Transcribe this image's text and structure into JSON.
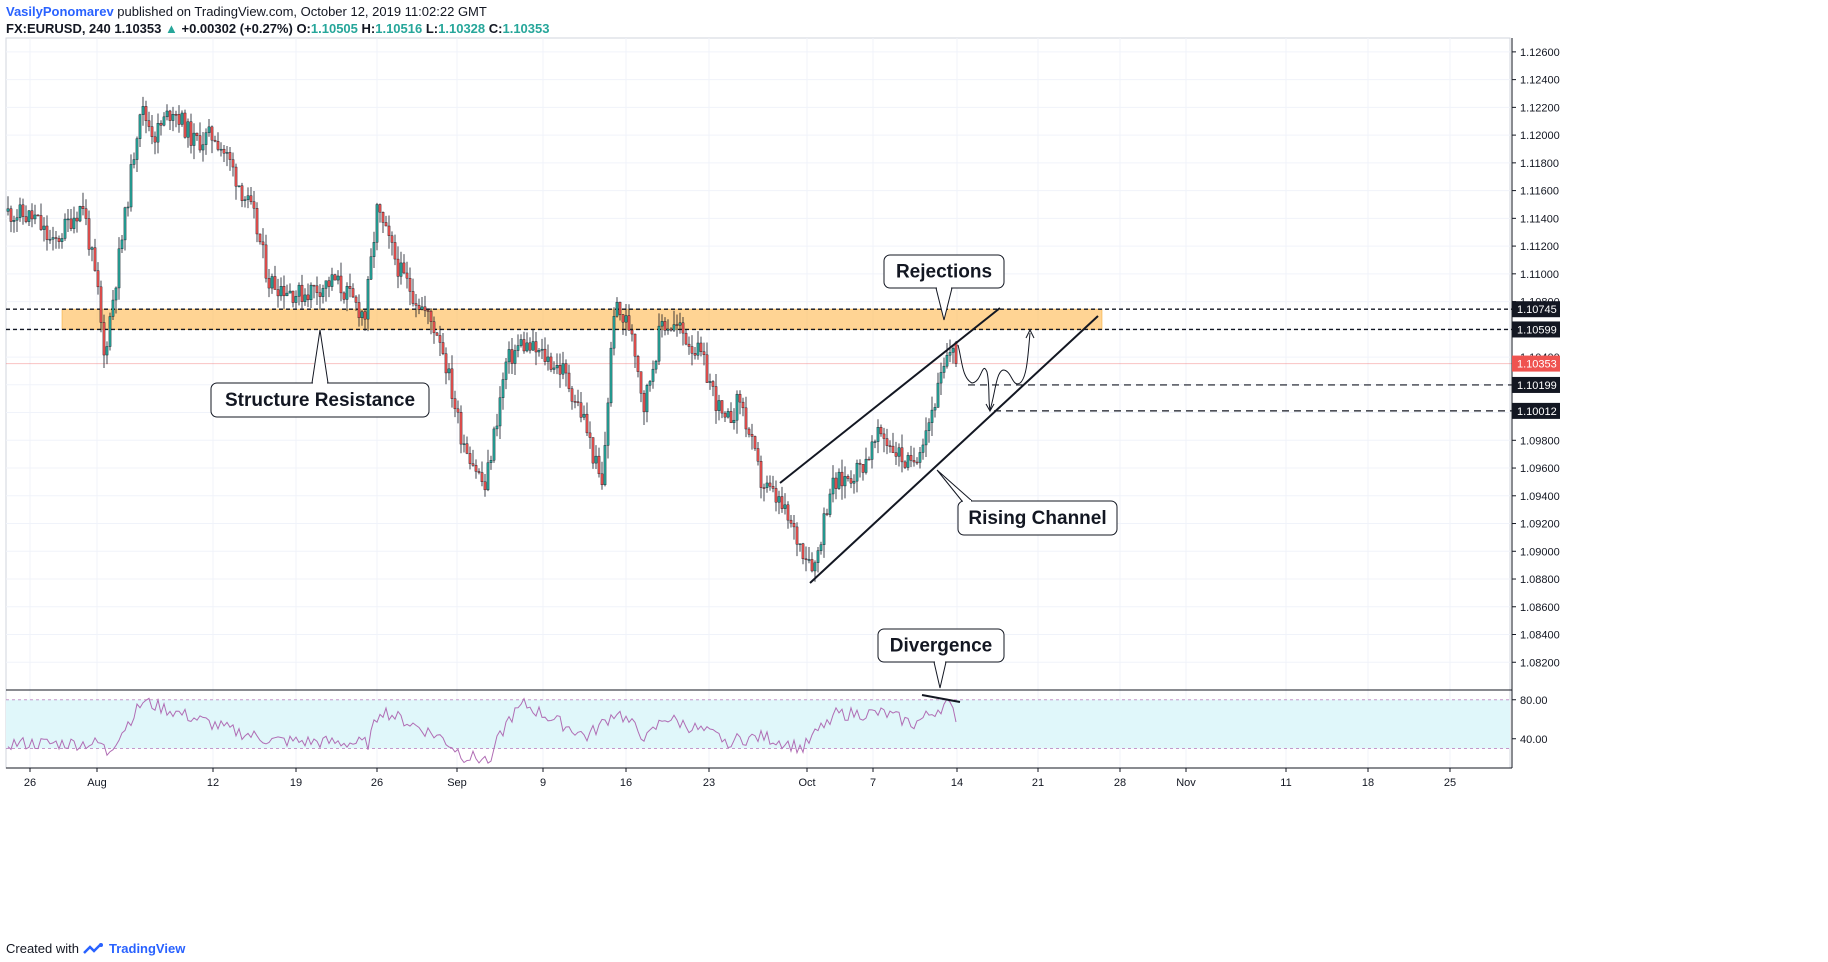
{
  "header": {
    "author": "VasilyPonomarev",
    "published": "published on TradingView.com, October 12, 2019 11:02:22 GMT",
    "symbol": "FX:EURUSD, 240",
    "last": "1.10353",
    "change_arrow": "▲",
    "change": "+0.00302 (+0.27%)",
    "o_label": "O:",
    "o": "1.10505",
    "h_label": "H:",
    "h": "1.10516",
    "l_label": "L:",
    "l": "1.10328",
    "c_label": "C:",
    "c": "1.10353"
  },
  "footer": {
    "created_with": "Created with",
    "brand": "TradingView"
  },
  "colors": {
    "up": "#26a69a",
    "down": "#ef5350",
    "zone": "#ffb74d",
    "rsi_line": "#b06db4",
    "rsi_band": "#e0f7fa",
    "last_price_tag": "#ef5350"
  },
  "chart_data": {
    "type": "candlestick",
    "symbol": "FX:EURUSD",
    "timeframe": "240",
    "ylim": [
      1.08,
      1.127
    ],
    "y_ticks": [
      "1.12600",
      "1.12400",
      "1.12200",
      "1.12000",
      "1.11800",
      "1.11600",
      "1.11400",
      "1.11200",
      "1.11000",
      "1.10800",
      "1.10600",
      "1.10400",
      "1.10200",
      "1.10000",
      "1.09800",
      "1.09600",
      "1.09400",
      "1.09200",
      "1.09000",
      "1.08800",
      "1.08600",
      "1.08400",
      "1.08200"
    ],
    "x_ticks": [
      "26",
      "Aug",
      "12",
      "19",
      "26",
      "Sep",
      "9",
      "16",
      "23",
      "Oct",
      "7",
      "14",
      "21",
      "28",
      "Nov",
      "11",
      "18",
      "25"
    ],
    "price_tags": [
      {
        "label": "1.10745",
        "style": "dark"
      },
      {
        "label": "1.10599",
        "style": "dark"
      },
      {
        "label": "1.10353",
        "style": "last"
      },
      {
        "label": "1.10199",
        "style": "dark"
      },
      {
        "label": "1.10012",
        "style": "dark"
      }
    ],
    "resistance_zone": [
      1.10599,
      1.10745
    ],
    "anchors": [
      {
        "t": 0,
        "p": 1.1145
      },
      {
        "t": 10,
        "p": 1.114
      },
      {
        "t": 16,
        "p": 1.112
      },
      {
        "t": 22,
        "p": 1.114
      },
      {
        "t": 26,
        "p": 1.115
      },
      {
        "t": 31,
        "p": 1.1085
      },
      {
        "t": 33,
        "p": 1.104
      },
      {
        "t": 40,
        "p": 1.114
      },
      {
        "t": 45,
        "p": 1.122
      },
      {
        "t": 50,
        "p": 1.12
      },
      {
        "t": 56,
        "p": 1.122
      },
      {
        "t": 63,
        "p": 1.1195
      },
      {
        "t": 70,
        "p": 1.12
      },
      {
        "t": 75,
        "p": 1.118
      },
      {
        "t": 83,
        "p": 1.114
      },
      {
        "t": 88,
        "p": 1.1095
      },
      {
        "t": 98,
        "p": 1.1085
      },
      {
        "t": 110,
        "p": 1.1095
      },
      {
        "t": 120,
        "p": 1.107
      },
      {
        "t": 124,
        "p": 1.1145
      },
      {
        "t": 132,
        "p": 1.11
      },
      {
        "t": 145,
        "p": 1.1055
      },
      {
        "t": 152,
        "p": 1.0985
      },
      {
        "t": 160,
        "p": 1.0945
      },
      {
        "t": 167,
        "p": 1.1035
      },
      {
        "t": 172,
        "p": 1.105
      },
      {
        "t": 180,
        "p": 1.104
      },
      {
        "t": 186,
        "p": 1.103
      },
      {
        "t": 193,
        "p": 1.0995
      },
      {
        "t": 199,
        "p": 1.0945
      },
      {
        "t": 203,
        "p": 1.1075
      },
      {
        "t": 209,
        "p": 1.106
      },
      {
        "t": 213,
        "p": 1.1005
      },
      {
        "t": 219,
        "p": 1.1065
      },
      {
        "t": 225,
        "p": 1.106
      },
      {
        "t": 232,
        "p": 1.104
      },
      {
        "t": 240,
        "p": 1.099
      },
      {
        "t": 245,
        "p": 1.101
      },
      {
        "t": 252,
        "p": 1.095
      },
      {
        "t": 258,
        "p": 1.0935
      },
      {
        "t": 265,
        "p": 1.0905
      },
      {
        "t": 270,
        "p": 1.089
      },
      {
        "t": 275,
        "p": 1.0945
      },
      {
        "t": 285,
        "p": 1.096
      },
      {
        "t": 292,
        "p": 1.0985
      },
      {
        "t": 302,
        "p": 1.096
      },
      {
        "t": 308,
        "p": 1.0995
      },
      {
        "t": 313,
        "p": 1.103
      },
      {
        "t": 316,
        "p": 1.10505
      }
    ],
    "last_candle": {
      "o": 1.10505,
      "h": 1.10516,
      "l": 1.10328,
      "c": 1.10353
    },
    "annotations": [
      {
        "id": "structure",
        "text": "Structure Resistance"
      },
      {
        "id": "rejections",
        "text": "Rejections"
      },
      {
        "id": "rising",
        "text": "Rising Channel"
      },
      {
        "id": "divergence",
        "text": "Divergence"
      }
    ],
    "rsi": {
      "ylim": [
        10,
        90
      ],
      "levels": [
        80,
        30
      ],
      "tick_labels": [
        "80.00",
        "40.00"
      ],
      "anchors": [
        {
          "t": 0,
          "v": 35
        },
        {
          "t": 31,
          "v": 35
        },
        {
          "t": 33,
          "v": 25
        },
        {
          "t": 45,
          "v": 78
        },
        {
          "t": 75,
          "v": 48
        },
        {
          "t": 88,
          "v": 38
        },
        {
          "t": 120,
          "v": 35
        },
        {
          "t": 124,
          "v": 70
        },
        {
          "t": 145,
          "v": 40
        },
        {
          "t": 152,
          "v": 22
        },
        {
          "t": 160,
          "v": 18
        },
        {
          "t": 167,
          "v": 60
        },
        {
          "t": 172,
          "v": 75
        },
        {
          "t": 193,
          "v": 42
        },
        {
          "t": 203,
          "v": 68
        },
        {
          "t": 213,
          "v": 40
        },
        {
          "t": 219,
          "v": 62
        },
        {
          "t": 240,
          "v": 38
        },
        {
          "t": 252,
          "v": 42
        },
        {
          "t": 265,
          "v": 30
        },
        {
          "t": 275,
          "v": 65
        },
        {
          "t": 292,
          "v": 66
        },
        {
          "t": 302,
          "v": 55
        },
        {
          "t": 313,
          "v": 76
        },
        {
          "t": 316,
          "v": 63
        }
      ]
    }
  }
}
